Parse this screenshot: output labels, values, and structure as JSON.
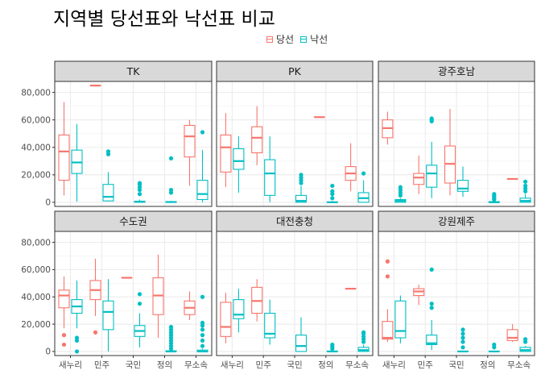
{
  "title": "지역별 당선표와 낙선표 비교",
  "legend": [
    {
      "label": "당선",
      "color": "#F8766D"
    },
    {
      "label": "낙선",
      "color": "#00BFC4"
    }
  ],
  "chart_data": {
    "type": "boxplot",
    "title": "지역별 당선표와 낙선표 비교",
    "xlabel": "",
    "ylabel": "",
    "categories": [
      "새누리",
      "민주",
      "국민",
      "정의",
      "무소속"
    ],
    "series": [
      "당선",
      "낙선"
    ],
    "ylim": [
      -3000,
      88000
    ],
    "yticks": [
      0,
      20000,
      40000,
      60000,
      80000
    ],
    "ytick_labels": [
      "0",
      "20,000",
      "40,000",
      "60,000",
      "80,000"
    ],
    "grid": true,
    "legend_position": "top",
    "facets": [
      {
        "name": "TK",
        "boxes": [
          {
            "cat": "새누리",
            "series": "당선",
            "min": 5000,
            "q1": 16000,
            "median": 37000,
            "q3": 49000,
            "max": 73000,
            "outliers": []
          },
          {
            "cat": "새누리",
            "series": "낙선",
            "min": 500,
            "q1": 21000,
            "median": 29000,
            "q3": 38000,
            "max": 57000,
            "outliers": []
          },
          {
            "cat": "민주",
            "series": "당선",
            "min": 85000,
            "q1": 85000,
            "median": 85000,
            "q3": 85000,
            "max": 85000,
            "outliers": []
          },
          {
            "cat": "민주",
            "series": "낙선",
            "min": 500,
            "q1": 1000,
            "median": 4000,
            "q3": 13000,
            "max": 22000,
            "outliers": [
              35000,
              37000
            ]
          },
          {
            "cat": "국민",
            "series": "낙선",
            "min": 0,
            "q1": 0,
            "median": 300,
            "q3": 800,
            "max": 2000,
            "outliers": [
              6000,
              9000,
              11000,
              13000,
              14000
            ]
          },
          {
            "cat": "정의",
            "series": "낙선",
            "min": 0,
            "q1": 0,
            "median": 200,
            "q3": 500,
            "max": 1000,
            "outliers": [
              7000,
              9000,
              32000
            ]
          },
          {
            "cat": "무소속",
            "series": "당선",
            "min": 12000,
            "q1": 33000,
            "median": 48000,
            "q3": 56000,
            "max": 60000,
            "outliers": []
          },
          {
            "cat": "무소속",
            "series": "낙선",
            "min": 0,
            "q1": 2000,
            "median": 6000,
            "q3": 16000,
            "max": 38000,
            "outliers": [
              51000
            ]
          }
        ]
      },
      {
        "name": "PK",
        "boxes": [
          {
            "cat": "새누리",
            "series": "당선",
            "min": 11000,
            "q1": 22000,
            "median": 40000,
            "q3": 49000,
            "max": 65000,
            "outliers": []
          },
          {
            "cat": "새누리",
            "series": "낙선",
            "min": 7000,
            "q1": 24000,
            "median": 30000,
            "q3": 39000,
            "max": 48000,
            "outliers": []
          },
          {
            "cat": "민주",
            "series": "당선",
            "min": 27000,
            "q1": 36000,
            "median": 47000,
            "q3": 55000,
            "max": 70000,
            "outliers": []
          },
          {
            "cat": "민주",
            "series": "낙선",
            "min": 0,
            "q1": 5000,
            "median": 21000,
            "q3": 31000,
            "max": 48000,
            "outliers": []
          },
          {
            "cat": "국민",
            "series": "낙선",
            "min": 0,
            "q1": 0,
            "median": 1000,
            "q3": 5000,
            "max": 12000,
            "outliers": [
              14000,
              16000,
              18000,
              20000
            ]
          },
          {
            "cat": "정의",
            "series": "당선",
            "min": 62000,
            "q1": 62000,
            "median": 62000,
            "q3": 62000,
            "max": 62000,
            "outliers": []
          },
          {
            "cat": "정의",
            "series": "낙선",
            "min": 0,
            "q1": 0,
            "median": 0,
            "q3": 300,
            "max": 1000,
            "outliers": [
              3000,
              6000,
              8000,
              12000
            ]
          },
          {
            "cat": "무소속",
            "series": "당선",
            "min": 8000,
            "q1": 16000,
            "median": 21000,
            "q3": 26000,
            "max": 43000,
            "outliers": []
          },
          {
            "cat": "무소속",
            "series": "낙선",
            "min": 0,
            "q1": 0,
            "median": 3000,
            "q3": 7000,
            "max": 16000,
            "outliers": [
              21000
            ]
          }
        ]
      },
      {
        "name": "광주호남",
        "boxes": [
          {
            "cat": "새누리",
            "series": "당선",
            "min": 42000,
            "q1": 47000,
            "median": 54000,
            "q3": 60000,
            "max": 66000,
            "outliers": []
          },
          {
            "cat": "새누리",
            "series": "낙선",
            "min": 0,
            "q1": 0,
            "median": 1000,
            "q3": 2000,
            "max": 3000,
            "outliers": [
              5000,
              7000,
              9000,
              11000
            ]
          },
          {
            "cat": "민주",
            "series": "당선",
            "min": 6000,
            "q1": 13000,
            "median": 18000,
            "q3": 21000,
            "max": 34000,
            "outliers": []
          },
          {
            "cat": "민주",
            "series": "낙선",
            "min": 3000,
            "q1": 11000,
            "median": 21000,
            "q3": 27000,
            "max": 44000,
            "outliers": [
              59000,
              60000,
              61000
            ]
          },
          {
            "cat": "국민",
            "series": "당선",
            "min": 5000,
            "q1": 14000,
            "median": 28000,
            "q3": 41000,
            "max": 68000,
            "outliers": []
          },
          {
            "cat": "국민",
            "series": "낙선",
            "min": 4000,
            "q1": 8000,
            "median": 10000,
            "q3": 16000,
            "max": 26000,
            "outliers": []
          },
          {
            "cat": "정의",
            "series": "낙선",
            "min": 0,
            "q1": 0,
            "median": 0,
            "q3": 500,
            "max": 1000,
            "outliers": [
              2000,
              3000,
              4000,
              5000,
              6000
            ]
          },
          {
            "cat": "무소속",
            "series": "당선",
            "min": 17000,
            "q1": 17000,
            "median": 17000,
            "q3": 17000,
            "max": 17000,
            "outliers": []
          },
          {
            "cat": "무소속",
            "series": "낙선",
            "min": 0,
            "q1": 0,
            "median": 1000,
            "q3": 3000,
            "max": 6000,
            "outliers": [
              8000,
              10000,
              12000,
              15000
            ]
          }
        ]
      },
      {
        "name": "수도권",
        "boxes": [
          {
            "cat": "새누리",
            "series": "당선",
            "min": 17000,
            "q1": 32000,
            "median": 41000,
            "q3": 45000,
            "max": 55000,
            "outliers": [
              5000,
              12000
            ]
          },
          {
            "cat": "새누리",
            "series": "낙선",
            "min": 17000,
            "q1": 28000,
            "median": 33000,
            "q3": 38000,
            "max": 52000,
            "outliers": [
              0,
              8000,
              10000
            ]
          },
          {
            "cat": "민주",
            "series": "당선",
            "min": 26000,
            "q1": 38000,
            "median": 45000,
            "q3": 52000,
            "max": 68000,
            "outliers": [
              14000
            ]
          },
          {
            "cat": "민주",
            "series": "낙선",
            "min": 0,
            "q1": 16000,
            "median": 29000,
            "q3": 37000,
            "max": 53000,
            "outliers": []
          },
          {
            "cat": "국민",
            "series": "당선",
            "min": 54000,
            "q1": 54000,
            "median": 54000,
            "q3": 54000,
            "max": 54000,
            "outliers": []
          },
          {
            "cat": "국민",
            "series": "낙선",
            "min": 3000,
            "q1": 11000,
            "median": 15000,
            "q3": 19000,
            "max": 28000,
            "outliers": [
              35000,
              42000
            ]
          },
          {
            "cat": "정의",
            "series": "당선",
            "min": 10000,
            "q1": 27000,
            "median": 41000,
            "q3": 54000,
            "max": 71000,
            "outliers": []
          },
          {
            "cat": "정의",
            "series": "낙선",
            "min": 0,
            "q1": 0,
            "median": 0,
            "q3": 500,
            "max": 1000,
            "outliers": [
              2000,
              4000,
              6000,
              8000,
              10000,
              12000,
              14000,
              16000,
              18000
            ]
          },
          {
            "cat": "무소속",
            "series": "당선",
            "min": 23000,
            "q1": 27000,
            "median": 32000,
            "q3": 37000,
            "max": 44000,
            "outliers": []
          },
          {
            "cat": "무소속",
            "series": "낙선",
            "min": 0,
            "q1": 0,
            "median": 0,
            "q3": 1000,
            "max": 2000,
            "outliers": [
              4000,
              8000,
              12000,
              16000,
              19000,
              21000,
              40000
            ]
          }
        ]
      },
      {
        "name": "대전충청",
        "boxes": [
          {
            "cat": "새누리",
            "series": "당선",
            "min": 6000,
            "q1": 11000,
            "median": 18000,
            "q3": 36000,
            "max": 43000,
            "outliers": []
          },
          {
            "cat": "새누리",
            "series": "낙선",
            "min": 14000,
            "q1": 24000,
            "median": 27000,
            "q3": 38000,
            "max": 46000,
            "outliers": []
          },
          {
            "cat": "민주",
            "series": "당선",
            "min": 22000,
            "q1": 28000,
            "median": 37000,
            "q3": 47000,
            "max": 53000,
            "outliers": []
          },
          {
            "cat": "민주",
            "series": "낙선",
            "min": 5000,
            "q1": 10000,
            "median": 13000,
            "q3": 28000,
            "max": 38000,
            "outliers": []
          },
          {
            "cat": "국민",
            "series": "낙선",
            "min": 0,
            "q1": 0,
            "median": 4000,
            "q3": 12000,
            "max": 25000,
            "outliers": []
          },
          {
            "cat": "정의",
            "series": "낙선",
            "min": 0,
            "q1": 0,
            "median": 0,
            "q3": 300,
            "max": 500,
            "outliers": [
              2000,
              3500,
              5000
            ]
          },
          {
            "cat": "무소속",
            "series": "당선",
            "min": 46000,
            "q1": 46000,
            "median": 46000,
            "q3": 46000,
            "max": 46000,
            "outliers": []
          },
          {
            "cat": "무소속",
            "series": "낙선",
            "min": 0,
            "q1": 0,
            "median": 1000,
            "q3": 3000,
            "max": 5000,
            "outliers": [
              7000,
              9000,
              11000,
              13000,
              14000
            ]
          }
        ]
      },
      {
        "name": "강원제주",
        "boxes": [
          {
            "cat": "새누리",
            "series": "당선",
            "min": 7000,
            "q1": 9000,
            "median": 10000,
            "q3": 22000,
            "max": 31000,
            "outliers": [
              55000,
              66000
            ]
          },
          {
            "cat": "새누리",
            "series": "낙선",
            "min": 6000,
            "q1": 10000,
            "median": 15000,
            "q3": 37000,
            "max": 41000,
            "outliers": []
          },
          {
            "cat": "민주",
            "series": "당선",
            "min": 34000,
            "q1": 41000,
            "median": 44000,
            "q3": 46000,
            "max": 49000,
            "outliers": []
          },
          {
            "cat": "민주",
            "series": "낙선",
            "min": 1000,
            "q1": 5000,
            "median": 6000,
            "q3": 12000,
            "max": 23000,
            "outliers": [
              32000,
              35000,
              60000
            ]
          },
          {
            "cat": "국민",
            "series": "낙선",
            "min": 0,
            "q1": 0,
            "median": 0,
            "q3": 200,
            "max": 500,
            "outliers": [
              3000,
              7000,
              10000,
              13000,
              16000
            ]
          },
          {
            "cat": "정의",
            "series": "낙선",
            "min": 0,
            "q1": 0,
            "median": 0,
            "q3": 200,
            "max": 500,
            "outliers": [
              3000,
              5000
            ]
          },
          {
            "cat": "무소속",
            "series": "당선",
            "min": 7000,
            "q1": 8000,
            "median": 10000,
            "q3": 16000,
            "max": 20000,
            "outliers": []
          },
          {
            "cat": "무소속",
            "series": "낙선",
            "min": 0,
            "q1": 0,
            "median": 1000,
            "q3": 3000,
            "max": 4000,
            "outliers": [
              7000,
              9000
            ]
          }
        ]
      }
    ]
  }
}
